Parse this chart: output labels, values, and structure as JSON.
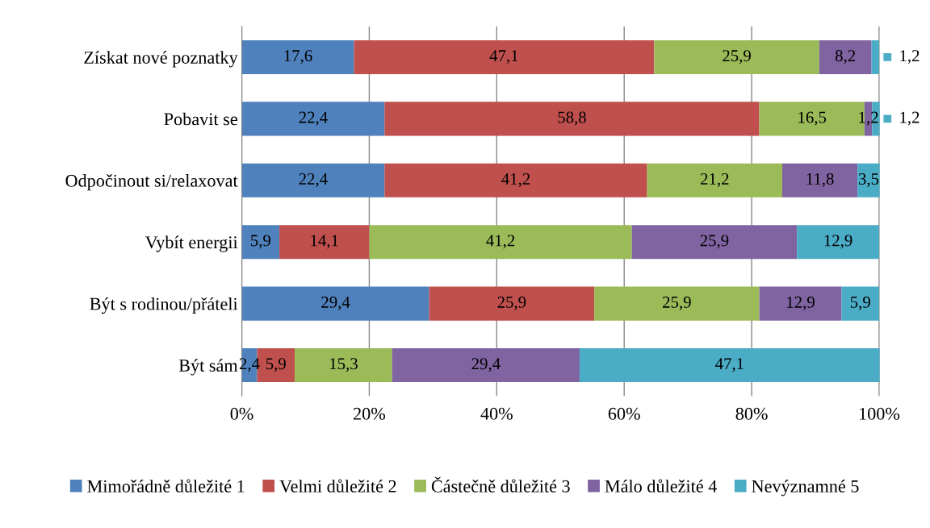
{
  "chart_data": {
    "type": "bar",
    "orientation": "horizontal",
    "stacked": true,
    "categories": [
      "Získat nové poznatky",
      "Pobavit se",
      "Odpočinout si/relaxovat",
      "Vybít energii",
      "Být s rodinou/přáteli",
      "Být sám"
    ],
    "series": [
      {
        "name": "Mimořádně důležité 1",
        "color": "#4f81bd",
        "values": [
          17.6,
          22.4,
          22.4,
          5.9,
          29.4,
          2.4
        ],
        "value_labels": [
          "17,6",
          "22,4",
          "22,4",
          "5,9",
          "29,4",
          "2,4"
        ]
      },
      {
        "name": "Velmi důležité 2",
        "color": "#c0504d",
        "values": [
          47.1,
          58.8,
          41.2,
          14.1,
          25.9,
          5.9
        ],
        "value_labels": [
          "47,1",
          "58,8",
          "41,2",
          "14,1",
          "25,9",
          "5,9"
        ]
      },
      {
        "name": "Částečně důležité 3",
        "color": "#9bbb59",
        "values": [
          25.9,
          16.5,
          21.2,
          41.2,
          25.9,
          15.3
        ],
        "value_labels": [
          "25,9",
          "16,5",
          "21,2",
          "41,2",
          "25,9",
          "15,3"
        ]
      },
      {
        "name": "Málo důležité 4",
        "color": "#8064a2",
        "values": [
          8.2,
          1.2,
          11.8,
          25.9,
          12.9,
          29.4
        ],
        "value_labels": [
          "8,2",
          "1,2",
          "11,8",
          "25,9",
          "12,9",
          "29,4"
        ]
      },
      {
        "name": "Nevýznamné 5",
        "color": "#4bacc6",
        "values": [
          1.2,
          1.2,
          3.5,
          12.9,
          5.9,
          47.1
        ],
        "value_labels": [
          "1,2",
          "1,2",
          "3,5",
          "12,9",
          "5,9",
          "47,1"
        ]
      }
    ],
    "xlim": [
      0,
      100.1
    ],
    "xticks": [
      {
        "value": 0,
        "label": "0%"
      },
      {
        "value": 20,
        "label": "20%"
      },
      {
        "value": 40,
        "label": "40%"
      },
      {
        "value": 60,
        "label": "60%"
      },
      {
        "value": 80,
        "label": "80%"
      },
      {
        "value": 100,
        "label": "100%"
      }
    ],
    "grid": "x",
    "legend": "bottom"
  }
}
